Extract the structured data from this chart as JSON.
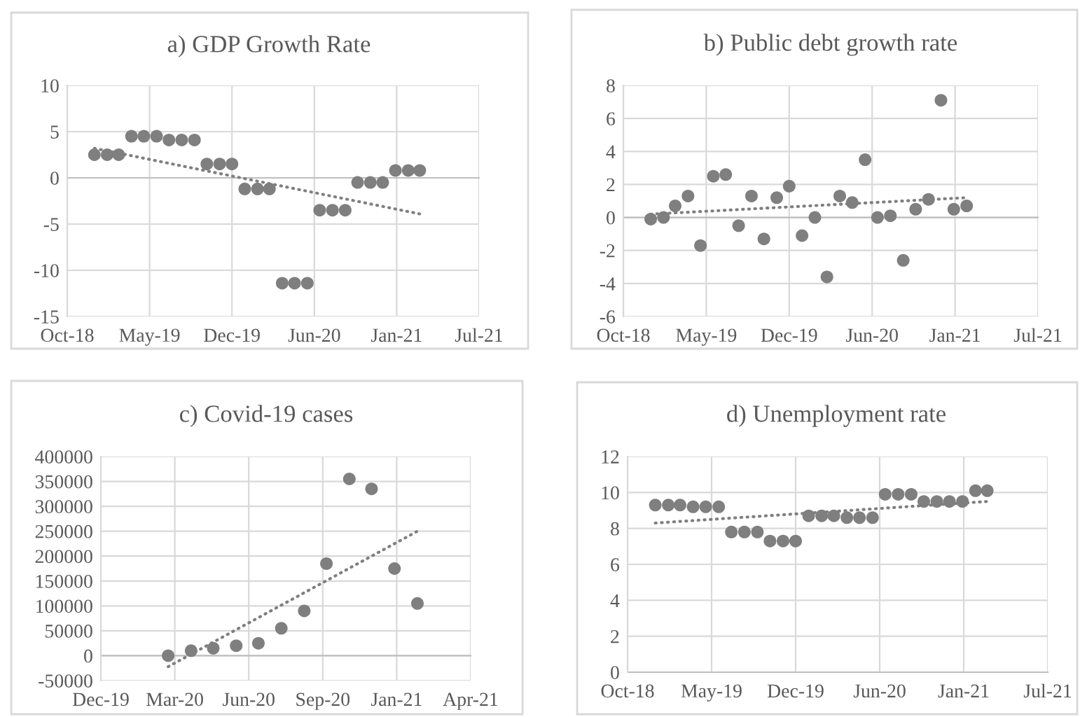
{
  "chart_data": [
    {
      "type": "scatter",
      "title": "a) GDP Growth Rate",
      "marker": "circle",
      "grid": true,
      "xlim": [
        "2018-10-27",
        "2021-07-23"
      ],
      "xticks": [
        {
          "value": "2018-10-27",
          "label": "Oct-18"
        },
        {
          "value": "2019-05-15",
          "label": "May-19"
        },
        {
          "value": "2019-12-01",
          "label": "Dec-19"
        },
        {
          "value": "2020-06-18",
          "label": "Jun-20"
        },
        {
          "value": "2021-01-04",
          "label": "Jan-21"
        },
        {
          "value": "2021-07-23",
          "label": "Jul-21"
        }
      ],
      "ylim": [
        -15,
        10
      ],
      "yticks": [
        -15,
        -10,
        -5,
        0,
        5,
        10
      ],
      "series": [
        {
          "color": "#7f7f7f",
          "x": [
            "2019-01",
            "2019-02",
            "2019-03",
            "2019-04",
            "2019-05",
            "2019-06",
            "2019-07",
            "2019-08",
            "2019-09",
            "2019-10",
            "2019-11",
            "2019-12",
            "2020-01",
            "2020-02",
            "2020-03",
            "2020-04",
            "2020-05",
            "2020-06",
            "2020-07",
            "2020-08",
            "2020-09",
            "2020-10",
            "2020-11",
            "2020-12",
            "2021-01",
            "2021-02",
            "2021-03"
          ],
          "values": [
            2.5,
            2.5,
            2.5,
            4.5,
            4.5,
            4.5,
            4.1,
            4.1,
            4.1,
            1.5,
            1.5,
            1.5,
            -1.2,
            -1.2,
            -1.2,
            -11.4,
            -11.4,
            -11.4,
            -3.5,
            -3.5,
            -3.5,
            -0.5,
            -0.5,
            -0.5,
            0.8,
            0.8,
            0.8
          ]
        },
        {
          "type": "line",
          "color": "#7f7f7f",
          "line_style": "dotted",
          "marker": "none",
          "x": [
            "2019-01",
            "2021-03"
          ],
          "values": [
            3.2,
            -3.9
          ]
        }
      ]
    },
    {
      "type": "scatter",
      "title": "b) Public debt growth rate",
      "marker": "circle",
      "grid": true,
      "xlim": [
        "2018-10-27",
        "2021-07-23"
      ],
      "xticks": [
        {
          "value": "2018-10-27",
          "label": "Oct-18"
        },
        {
          "value": "2019-05-15",
          "label": "May-19"
        },
        {
          "value": "2019-12-01",
          "label": "Dec-19"
        },
        {
          "value": "2020-06-18",
          "label": "Jun-20"
        },
        {
          "value": "2021-01-04",
          "label": "Jan-21"
        },
        {
          "value": "2021-07-23",
          "label": "Jul-21"
        }
      ],
      "ylim": [
        -6,
        8
      ],
      "yticks": [
        -6,
        -4,
        -2,
        0,
        2,
        4,
        6,
        8
      ],
      "series": [
        {
          "color": "#7f7f7f",
          "x": [
            "2019-01",
            "2019-02",
            "2019-03",
            "2019-04",
            "2019-05",
            "2019-06",
            "2019-07",
            "2019-08",
            "2019-09",
            "2019-10",
            "2019-11",
            "2019-12",
            "2020-01",
            "2020-02",
            "2020-03",
            "2020-04",
            "2020-05",
            "2020-06",
            "2020-07",
            "2020-08",
            "2020-09",
            "2020-10",
            "2020-11",
            "2020-12",
            "2021-01",
            "2021-02"
          ],
          "values": [
            -0.1,
            0,
            0.7,
            1.3,
            -1.7,
            2.5,
            2.6,
            -0.5,
            1.3,
            -1.3,
            1.2,
            1.9,
            -1.1,
            0,
            -3.6,
            1.3,
            0.9,
            3.5,
            0,
            0.1,
            -2.6,
            0.5,
            1.1,
            7.1,
            0.5,
            0.7
          ]
        },
        {
          "type": "line",
          "color": "#7f7f7f",
          "line_style": "dotted",
          "marker": "none",
          "x": [
            "2019-01",
            "2021-02"
          ],
          "values": [
            0.2,
            1.2
          ]
        }
      ]
    },
    {
      "type": "scatter",
      "title": "c) Covid-19 cases",
      "marker": "circle",
      "grid": true,
      "xlim": [
        "2019-12-01",
        "2021-04-14"
      ],
      "xticks": [
        {
          "value": "2019-12-01",
          "label": "Dec-19"
        },
        {
          "value": "2020-03-10",
          "label": "Mar-20"
        },
        {
          "value": "2020-06-18",
          "label": "Jun-20"
        },
        {
          "value": "2020-09-26",
          "label": "Sep-20"
        },
        {
          "value": "2021-01-04",
          "label": "Jan-21"
        },
        {
          "value": "2021-04-14",
          "label": "Apr-21"
        }
      ],
      "ylim": [
        -50000,
        400000
      ],
      "yticks": [
        -50000,
        0,
        50000,
        100000,
        150000,
        200000,
        250000,
        300000,
        350000,
        400000
      ],
      "series": [
        {
          "color": "#7f7f7f",
          "x": [
            "2020-03",
            "2020-04",
            "2020-05",
            "2020-06",
            "2020-07",
            "2020-08",
            "2020-09",
            "2020-10",
            "2020-11",
            "2020-12",
            "2021-01",
            "2021-02"
          ],
          "values": [
            0,
            10000,
            15000,
            20000,
            25000,
            55000,
            90000,
            185000,
            355000,
            335000,
            175000,
            105000
          ]
        },
        {
          "type": "line",
          "color": "#7f7f7f",
          "line_style": "dotted",
          "marker": "none",
          "x": [
            "2020-03",
            "2021-02"
          ],
          "values": [
            -22000,
            250000
          ]
        }
      ]
    },
    {
      "type": "scatter",
      "title": "d) Unemployment rate",
      "marker": "circle",
      "grid": true,
      "xlim": [
        "2018-10-27",
        "2021-07-23"
      ],
      "xticks": [
        {
          "value": "2018-10-27",
          "label": "Oct-18"
        },
        {
          "value": "2019-05-15",
          "label": "May-19"
        },
        {
          "value": "2019-12-01",
          "label": "Dec-19"
        },
        {
          "value": "2020-06-18",
          "label": "Jun-20"
        },
        {
          "value": "2021-01-04",
          "label": "Jan-21"
        },
        {
          "value": "2021-07-23",
          "label": "Jul-21"
        }
      ],
      "ylim": [
        0,
        12
      ],
      "yticks": [
        0,
        2,
        4,
        6,
        8,
        10,
        12
      ],
      "series": [
        {
          "color": "#7f7f7f",
          "x": [
            "2019-01",
            "2019-02",
            "2019-03",
            "2019-04",
            "2019-05",
            "2019-06",
            "2019-07",
            "2019-08",
            "2019-09",
            "2019-10",
            "2019-11",
            "2019-12",
            "2020-01",
            "2020-02",
            "2020-03",
            "2020-04",
            "2020-05",
            "2020-06",
            "2020-07",
            "2020-08",
            "2020-09",
            "2020-10",
            "2020-11",
            "2020-12",
            "2021-01",
            "2021-02",
            "2021-03"
          ],
          "values": [
            9.3,
            9.3,
            9.3,
            9.2,
            9.2,
            9.2,
            7.8,
            7.8,
            7.8,
            7.3,
            7.3,
            7.3,
            8.7,
            8.7,
            8.7,
            8.6,
            8.6,
            8.6,
            9.9,
            9.9,
            9.9,
            9.5,
            9.5,
            9.5,
            9.5,
            10.1,
            10.1
          ]
        },
        {
          "type": "line",
          "color": "#7f7f7f",
          "line_style": "dotted",
          "marker": "none",
          "x": [
            "2019-01",
            "2021-03"
          ],
          "values": [
            8.3,
            9.5
          ]
        }
      ]
    }
  ]
}
